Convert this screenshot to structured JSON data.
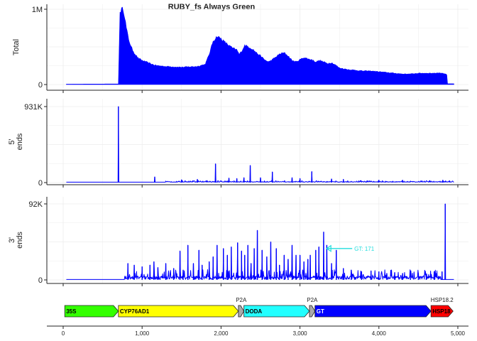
{
  "chart_data": [
    {
      "type": "area",
      "panel": "total",
      "title": "RUBY_fs Always Green",
      "ylabel": "Total",
      "xlim": [
        0,
        5000
      ],
      "ylim": [
        0,
        1000000
      ],
      "yticks": [
        {
          "value": 0,
          "label": "0"
        },
        {
          "value": 1000000,
          "label": "1M"
        }
      ],
      "color": "#0000ff",
      "grid": true,
      "series": [
        {
          "x": [
            40,
            700,
            700,
            720,
            740,
            760,
            780,
            800,
            830,
            860,
            900,
            950,
            1000,
            1050,
            1100,
            1150,
            1200,
            1300,
            1400,
            1500,
            1600,
            1700,
            1800,
            1850,
            1900,
            1920,
            1950,
            2000,
            2050,
            2100,
            2150,
            2200,
            2230,
            2260,
            2300,
            2350,
            2400,
            2450,
            2500,
            2550,
            2600,
            2650,
            2700,
            2750,
            2800,
            2850,
            2900,
            2950,
            3000,
            3050,
            3100,
            3150,
            3200,
            3250,
            3300,
            3350,
            3400,
            3450,
            3500,
            3600,
            3700,
            3800,
            3900,
            4000,
            4100,
            4200,
            4300,
            4400,
            4500,
            4600,
            4700,
            4750,
            4800,
            4850,
            4860,
            4870,
            4950
          ],
          "y": [
            5000,
            8000,
            20000,
            960000,
            1000000,
            1000000,
            900000,
            750000,
            600000,
            500000,
            420000,
            350000,
            320000,
            300000,
            280000,
            260000,
            250000,
            240000,
            235000,
            230000,
            235000,
            240000,
            270000,
            400000,
            580000,
            600000,
            640000,
            610000,
            560000,
            520000,
            480000,
            460000,
            400000,
            440000,
            520000,
            500000,
            470000,
            420000,
            380000,
            330000,
            300000,
            330000,
            370000,
            410000,
            420000,
            380000,
            320000,
            300000,
            330000,
            360000,
            340000,
            330000,
            300000,
            320000,
            300000,
            280000,
            290000,
            260000,
            220000,
            200000,
            190000,
            180000,
            180000,
            170000,
            160000,
            150000,
            140000,
            140000,
            150000,
            150000,
            150000,
            155000,
            150000,
            140000,
            130000,
            10000,
            10000
          ]
        }
      ]
    },
    {
      "type": "line",
      "panel": "five_prime",
      "ylabel": "5'\nends",
      "xlim": [
        0,
        5000
      ],
      "ylim": [
        0,
        931000
      ],
      "yticks": [
        {
          "value": 0,
          "label": "0"
        },
        {
          "value": 931000,
          "label": "931K"
        }
      ],
      "color": "#0000ff",
      "grid": true,
      "baseline": 5000,
      "noise": {
        "start": 1300,
        "end": 4950,
        "amplitude": 20000
      },
      "spikes": [
        {
          "x": 700,
          "y": 931000
        },
        {
          "x": 1160,
          "y": 70000
        },
        {
          "x": 1500,
          "y": 35000
        },
        {
          "x": 1700,
          "y": 40000
        },
        {
          "x": 1930,
          "y": 230000
        },
        {
          "x": 2100,
          "y": 55000
        },
        {
          "x": 2200,
          "y": 50000
        },
        {
          "x": 2290,
          "y": 60000
        },
        {
          "x": 2370,
          "y": 210000
        },
        {
          "x": 2500,
          "y": 60000
        },
        {
          "x": 2650,
          "y": 130000
        },
        {
          "x": 2900,
          "y": 60000
        },
        {
          "x": 3000,
          "y": 50000
        },
        {
          "x": 3150,
          "y": 135000
        },
        {
          "x": 3400,
          "y": 45000
        },
        {
          "x": 3550,
          "y": 40000
        },
        {
          "x": 4000,
          "y": 30000
        },
        {
          "x": 4300,
          "y": 30000
        },
        {
          "x": 4810,
          "y": 30000
        }
      ]
    },
    {
      "type": "line",
      "panel": "three_prime",
      "ylabel": "3'\nends",
      "xlim": [
        0,
        5000
      ],
      "ylim": [
        0,
        92000
      ],
      "yticks": [
        {
          "value": 0,
          "label": "0"
        },
        {
          "value": 92000,
          "label": "92K"
        }
      ],
      "color": "#0000ff",
      "grid": true,
      "baseline": 500,
      "noise": {
        "start": 780,
        "end": 4780,
        "amplitude": 12000
      },
      "spikes": [
        {
          "x": 820,
          "y": 20000
        },
        {
          "x": 900,
          "y": 18000
        },
        {
          "x": 1000,
          "y": 16000
        },
        {
          "x": 1100,
          "y": 18000
        },
        {
          "x": 1150,
          "y": 22000
        },
        {
          "x": 1200,
          "y": 15000
        },
        {
          "x": 1300,
          "y": 20000
        },
        {
          "x": 1400,
          "y": 14000
        },
        {
          "x": 1480,
          "y": 35000
        },
        {
          "x": 1520,
          "y": 12000
        },
        {
          "x": 1580,
          "y": 42000
        },
        {
          "x": 1650,
          "y": 20000
        },
        {
          "x": 1720,
          "y": 36000
        },
        {
          "x": 1760,
          "y": 18000
        },
        {
          "x": 1850,
          "y": 22000
        },
        {
          "x": 1900,
          "y": 28000
        },
        {
          "x": 1950,
          "y": 42000
        },
        {
          "x": 2030,
          "y": 38000
        },
        {
          "x": 2080,
          "y": 30000
        },
        {
          "x": 2130,
          "y": 40000
        },
        {
          "x": 2210,
          "y": 45000
        },
        {
          "x": 2260,
          "y": 35000
        },
        {
          "x": 2300,
          "y": 30000
        },
        {
          "x": 2340,
          "y": 42000
        },
        {
          "x": 2380,
          "y": 20000
        },
        {
          "x": 2420,
          "y": 38000
        },
        {
          "x": 2460,
          "y": 60000
        },
        {
          "x": 2520,
          "y": 36000
        },
        {
          "x": 2580,
          "y": 28000
        },
        {
          "x": 2630,
          "y": 46000
        },
        {
          "x": 2700,
          "y": 38000
        },
        {
          "x": 2740,
          "y": 18000
        },
        {
          "x": 2800,
          "y": 30000
        },
        {
          "x": 2850,
          "y": 25000
        },
        {
          "x": 2900,
          "y": 42000
        },
        {
          "x": 2950,
          "y": 30000
        },
        {
          "x": 3000,
          "y": 30000
        },
        {
          "x": 3050,
          "y": 22000
        },
        {
          "x": 3100,
          "y": 25000
        },
        {
          "x": 3130,
          "y": 30000
        },
        {
          "x": 3200,
          "y": 36000
        },
        {
          "x": 3240,
          "y": 40000
        },
        {
          "x": 3300,
          "y": 58000
        },
        {
          "x": 3340,
          "y": 42000
        },
        {
          "x": 3400,
          "y": 20000
        },
        {
          "x": 3460,
          "y": 36000
        },
        {
          "x": 3550,
          "y": 14000
        },
        {
          "x": 3650,
          "y": 12000
        },
        {
          "x": 3780,
          "y": 10000
        },
        {
          "x": 3900,
          "y": 11000
        },
        {
          "x": 4000,
          "y": 10000
        },
        {
          "x": 4100,
          "y": 8000
        },
        {
          "x": 4200,
          "y": 9000
        },
        {
          "x": 4300,
          "y": 8000
        },
        {
          "x": 4400,
          "y": 8000
        },
        {
          "x": 4500,
          "y": 8000
        },
        {
          "x": 4600,
          "y": 7000
        },
        {
          "x": 4700,
          "y": 10000
        },
        {
          "x": 4800,
          "y": 10000
        },
        {
          "x": 4840,
          "y": 92000
        }
      ],
      "annotation": {
        "label": "GT: 171",
        "x": 3320,
        "y": 38000,
        "color": "#22dddd"
      }
    }
  ],
  "gene_map": {
    "xlim": [
      0,
      5000
    ],
    "xticks": [
      {
        "value": 0,
        "label": "0"
      },
      {
        "value": 1000,
        "label": "1,000"
      },
      {
        "value": 2000,
        "label": "2,000"
      },
      {
        "value": 3000,
        "label": "3,000"
      },
      {
        "value": 4000,
        "label": "4,000"
      },
      {
        "value": 5000,
        "label": "5,000"
      }
    ],
    "features": [
      {
        "name": "35S",
        "start": 20,
        "end": 700,
        "color": "#33ff00",
        "text_color": "#000000",
        "label_inside": true
      },
      {
        "name": "CYP76AD1",
        "start": 700,
        "end": 2220,
        "color": "#ffff00",
        "text_color": "#000000",
        "label_inside": true
      },
      {
        "name": "P2A",
        "start": 2220,
        "end": 2290,
        "color": "#aaaaaa",
        "text_color": "#222222",
        "label_inside": false
      },
      {
        "name": "DODA",
        "start": 2290,
        "end": 3120,
        "color": "#22ffff",
        "text_color": "#000000",
        "label_inside": true
      },
      {
        "name": "P2A",
        "start": 3120,
        "end": 3190,
        "color": "#aaaaaa",
        "text_color": "#222222",
        "label_inside": false
      },
      {
        "name": "GT",
        "start": 3190,
        "end": 4660,
        "color": "#0000ff",
        "text_color": "#ffffff",
        "label_inside": true
      },
      {
        "name": "HSP18.2",
        "start": 4660,
        "end": 4940,
        "color": "#ff0000",
        "text_color": "#000000",
        "label_inside": true,
        "above_label": "HSP18.2",
        "inner_label": "HSP18"
      }
    ]
  }
}
